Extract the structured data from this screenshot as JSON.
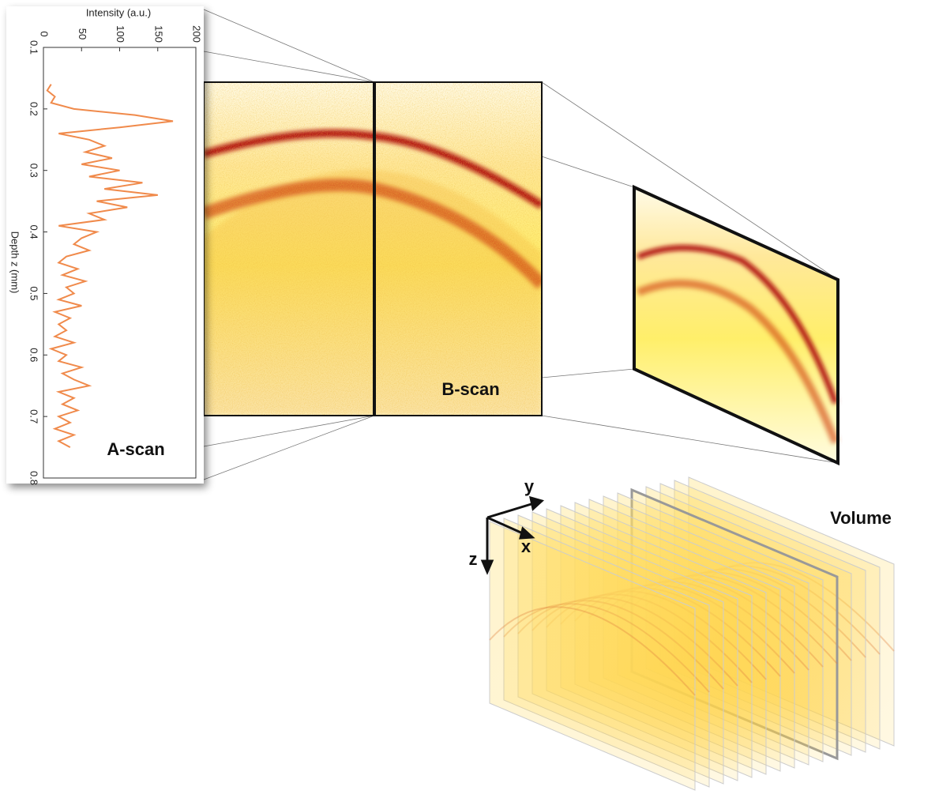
{
  "chart_data": {
    "type": "line",
    "orientation": "vertical",
    "annotation": "A-scan",
    "xlabel": "Depth z (mm)",
    "ylabel": "Intensity (a.u.)",
    "x": [
      0.16,
      0.17,
      0.18,
      0.19,
      0.2,
      0.21,
      0.22,
      0.23,
      0.24,
      0.25,
      0.26,
      0.27,
      0.28,
      0.29,
      0.3,
      0.31,
      0.32,
      0.33,
      0.34,
      0.35,
      0.36,
      0.37,
      0.38,
      0.39,
      0.4,
      0.41,
      0.42,
      0.43,
      0.44,
      0.45,
      0.46,
      0.47,
      0.48,
      0.49,
      0.5,
      0.51,
      0.52,
      0.53,
      0.54,
      0.55,
      0.56,
      0.57,
      0.58,
      0.59,
      0.6,
      0.61,
      0.62,
      0.63,
      0.64,
      0.65,
      0.66,
      0.67,
      0.68,
      0.69,
      0.7,
      0.71,
      0.72,
      0.73,
      0.74,
      0.75
    ],
    "values": [
      10,
      5,
      15,
      10,
      40,
      120,
      170,
      100,
      20,
      60,
      80,
      55,
      90,
      50,
      100,
      60,
      130,
      80,
      150,
      70,
      110,
      60,
      80,
      20,
      70,
      50,
      40,
      60,
      30,
      20,
      45,
      25,
      55,
      30,
      40,
      20,
      50,
      15,
      35,
      20,
      30,
      15,
      40,
      10,
      30,
      20,
      50,
      25,
      40,
      60,
      20,
      40,
      25,
      45,
      20,
      35,
      15,
      40,
      20,
      35
    ],
    "color": "#f08a4b",
    "xlim": [
      0.1,
      0.8
    ],
    "xticks": [
      0.1,
      0.2,
      0.3,
      0.4,
      0.5,
      0.6,
      0.7,
      0.8
    ],
    "ylim": [
      0,
      200
    ],
    "yticks": [
      0,
      50,
      100,
      150,
      200
    ]
  },
  "labels": {
    "bscan": "B-scan",
    "volume": "Volume",
    "axis_y": "y",
    "axis_x": "x",
    "axis_z": "z"
  }
}
